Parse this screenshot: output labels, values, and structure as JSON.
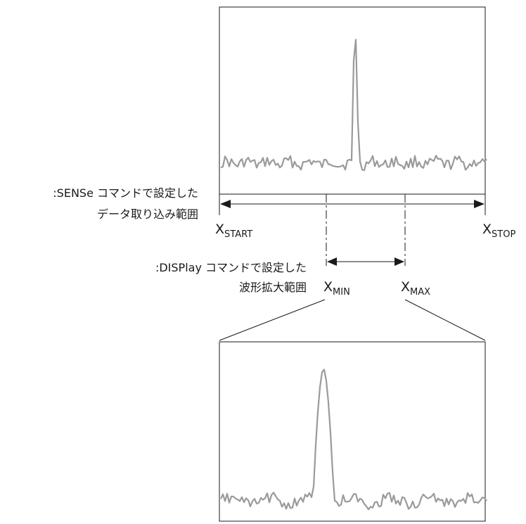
{
  "sense_label": {
    "line1": ":SENSe コマンドで設定した",
    "line2": "データ取り込み範囲"
  },
  "display_label": {
    "line1": ":DISPlay コマンドで設定した",
    "line2": "波形拡大範囲"
  },
  "markers": {
    "x_start": {
      "symbol": "X",
      "subscript": "START"
    },
    "x_stop": {
      "symbol": "X",
      "subscript": "STOP"
    },
    "x_min": {
      "symbol": "X",
      "subscript": "MIN"
    },
    "x_max": {
      "symbol": "X",
      "subscript": "MAX"
    }
  },
  "colors": {
    "waveform": "#9a9a9a",
    "lines": "#1a1a1a"
  }
}
